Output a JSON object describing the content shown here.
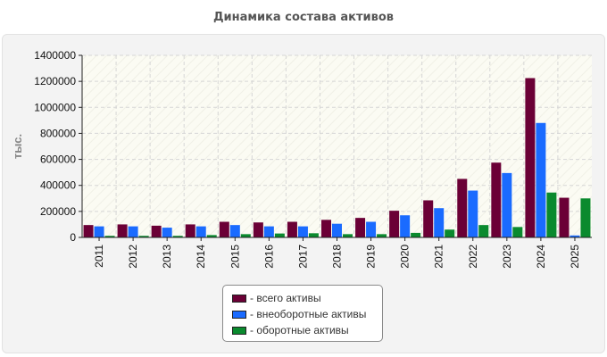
{
  "chart_data": {
    "type": "bar",
    "title": "Динамика состава активов",
    "ylabel": "тыс.",
    "xlabel": "",
    "ylim": [
      0,
      1400000
    ],
    "yticks": [
      0,
      200000,
      400000,
      600000,
      800000,
      1000000,
      1200000,
      1400000
    ],
    "grid": true,
    "legend_position": "bottom",
    "categories": [
      "2011",
      "2012",
      "2013",
      "2014",
      "2015",
      "2016",
      "2017",
      "2018",
      "2019",
      "2020",
      "2021",
      "2022",
      "2023",
      "2024",
      "2025"
    ],
    "series": [
      {
        "name": "- всего активы",
        "color": "#6b0036",
        "values": [
          95000,
          100000,
          90000,
          100000,
          120000,
          115000,
          120000,
          135000,
          150000,
          205000,
          285000,
          450000,
          575000,
          1225000,
          305000
        ]
      },
      {
        "name": "- внеоборотные активы",
        "color": "#1a6bff",
        "values": [
          85000,
          85000,
          75000,
          85000,
          95000,
          85000,
          85000,
          105000,
          120000,
          170000,
          225000,
          360000,
          495000,
          880000,
          15000
        ]
      },
      {
        "name": "- оборотные активы",
        "color": "#0a8a2e",
        "values": [
          12000,
          12000,
          12000,
          18000,
          25000,
          30000,
          32000,
          25000,
          25000,
          35000,
          60000,
          95000,
          80000,
          345000,
          300000
        ]
      }
    ]
  }
}
